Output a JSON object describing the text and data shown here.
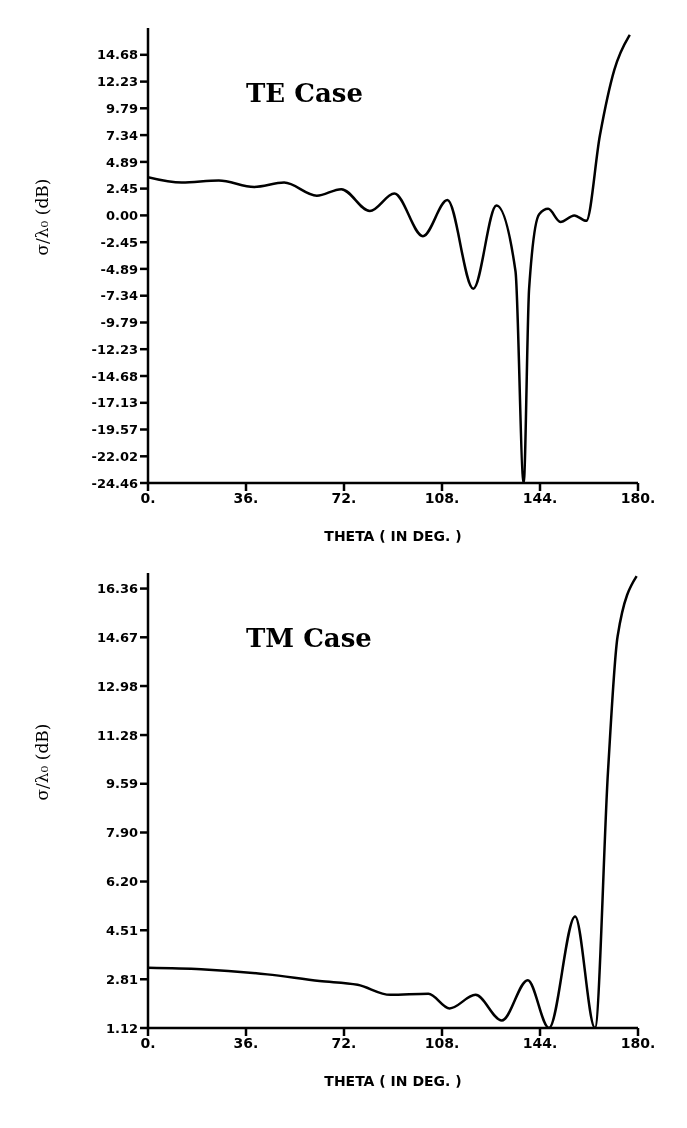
{
  "chart_data": [
    {
      "type": "line",
      "title": "TE Case",
      "xlabel": "THETA ( IN DEG. )",
      "ylabel": "σ/λ₀ (dB)",
      "grid": false,
      "legend": false,
      "marker": "none",
      "line_style": "solid",
      "xlim": [
        0,
        180
      ],
      "xticks": [
        {
          "value": 0,
          "label": "0."
        },
        {
          "value": 36,
          "label": "36."
        },
        {
          "value": 72,
          "label": "72."
        },
        {
          "value": 108,
          "label": "108."
        },
        {
          "value": 144,
          "label": "144."
        },
        {
          "value": 180,
          "label": "180."
        }
      ],
      "ylim": [
        -24.46,
        17.13
      ],
      "yticks": [
        14.68,
        12.23,
        9.79,
        7.34,
        4.89,
        2.45,
        {
          "value": 0,
          "label": "0.00"
        },
        -2.45,
        -4.89,
        -7.34,
        -9.79,
        -12.23,
        -14.68,
        -17.13,
        -19.57,
        -22.02,
        -24.46
      ],
      "series": [
        {
          "color": "#000000",
          "x": [
            0,
            12.4,
            26,
            39,
            50,
            62,
            71,
            81.5,
            90.5,
            101,
            110,
            119.5,
            128,
            135,
            138,
            140,
            143.7,
            147,
            151.5,
            156.6,
            161,
            166,
            171.3,
            176.5,
            177
          ],
          "values": [
            3.5,
            3.0,
            3.2,
            2.6,
            3.0,
            1.8,
            2.4,
            0.4,
            2.0,
            -1.9,
            1.4,
            -6.7,
            0.9,
            -5.1,
            -24.46,
            -6.7,
            0.1,
            0.6,
            -0.6,
            0,
            -0.5,
            7.3,
            13.3,
            16.3,
            16.5
          ]
        }
      ]
    },
    {
      "type": "line",
      "title": "TM Case",
      "xlabel": "THETA ( IN DEG. )",
      "ylabel": "σ/λ₀ (dB)",
      "grid": false,
      "legend": false,
      "marker": "none",
      "line_style": "solid",
      "xlim": [
        0,
        180
      ],
      "xticks": [
        {
          "value": 0,
          "label": "0."
        },
        {
          "value": 36,
          "label": "36."
        },
        {
          "value": 72,
          "label": "72."
        },
        {
          "value": 108,
          "label": "108."
        },
        {
          "value": 144,
          "label": "144."
        },
        {
          "value": 180,
          "label": "180."
        }
      ],
      "ylim": [
        1.12,
        16.9
      ],
      "yticks": [
        16.36,
        14.67,
        12.98,
        11.28,
        9.59,
        {
          "value": 7.9,
          "label": "7.90"
        },
        {
          "value": 6.2,
          "label": "6.20"
        },
        4.51,
        2.81,
        1.12
      ],
      "series": [
        {
          "color": "#000000",
          "x": [
            0,
            19.5,
            43.8,
            63,
            77,
            89,
            103,
            110.8,
            120.3,
            130,
            139.5,
            147.3,
            156.9,
            164.2,
            169,
            172.5,
            179.5
          ],
          "values": [
            3.21,
            3.16,
            2.98,
            2.75,
            2.62,
            2.27,
            2.31,
            1.8,
            2.27,
            1.38,
            2.78,
            1.12,
            4.99,
            1.12,
            10.05,
            14.7,
            16.79
          ]
        }
      ]
    }
  ]
}
